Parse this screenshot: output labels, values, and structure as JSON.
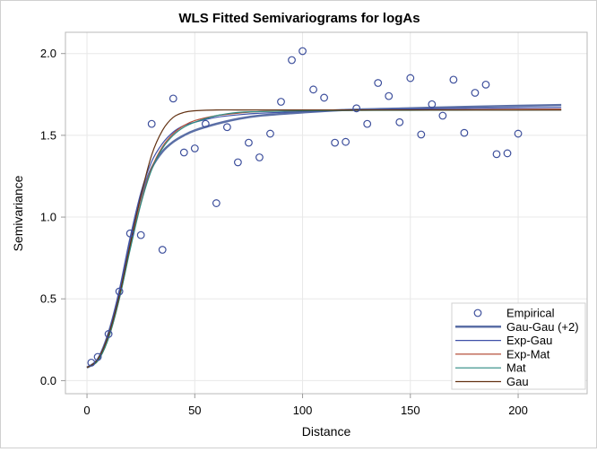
{
  "chart_data": {
    "type": "scatter",
    "title": "WLS Fitted Semivariograms for logAs",
    "xlabel": "Distance",
    "ylabel": "Semivariance",
    "xlim": [
      -10,
      232
    ],
    "ylim": [
      -0.08,
      2.13
    ],
    "xticks": [
      0,
      50,
      100,
      150,
      200
    ],
    "yticks": [
      0.0,
      0.5,
      1.0,
      1.5,
      2.0
    ],
    "xtick_labels": [
      "0",
      "50",
      "100",
      "150",
      "200"
    ],
    "ytick_labels": [
      "0.0",
      "0.5",
      "1.0",
      "1.5",
      "2.0"
    ],
    "grid": true,
    "legend_position": "bottom-right",
    "empirical": {
      "name": "Empirical",
      "color": "#3d4f9c",
      "x": [
        2,
        5,
        10,
        15,
        20,
        25,
        30,
        35,
        40,
        45,
        50,
        55,
        60,
        65,
        70,
        75,
        80,
        85,
        90,
        95,
        100,
        105,
        110,
        115,
        120,
        125,
        130,
        135,
        140,
        145,
        150,
        155,
        160,
        165,
        170,
        175,
        180,
        185,
        190,
        195,
        200
      ],
      "y": [
        0.11,
        0.145,
        0.285,
        0.545,
        0.9,
        0.89,
        1.57,
        0.8,
        1.725,
        1.395,
        1.42,
        1.57,
        1.085,
        1.55,
        1.335,
        1.455,
        1.365,
        1.51,
        1.705,
        1.96,
        2.015,
        1.78,
        1.73,
        1.455,
        1.46,
        1.665,
        1.57,
        1.82,
        1.74,
        1.58,
        1.85,
        1.505,
        1.69,
        1.62,
        1.84,
        1.515,
        1.76,
        1.81,
        1.385,
        1.39,
        1.51
      ]
    },
    "series": [
      {
        "name": "Gau-Gau (+2)",
        "color": "#5b6fa6",
        "width": 2.5,
        "x": [
          0,
          5,
          10,
          15,
          20,
          25,
          30,
          35,
          40,
          45,
          50,
          60,
          70,
          80,
          100,
          120,
          150,
          180,
          220
        ],
        "y": [
          0.08,
          0.13,
          0.29,
          0.54,
          0.86,
          1.13,
          1.3,
          1.4,
          1.46,
          1.5,
          1.53,
          1.57,
          1.6,
          1.62,
          1.64,
          1.655,
          1.665,
          1.675,
          1.685
        ]
      },
      {
        "name": "Exp-Gau",
        "color": "#3f51a8",
        "width": 1.2,
        "x": [
          0,
          5,
          10,
          15,
          20,
          25,
          30,
          35,
          40,
          45,
          50,
          60,
          70,
          80,
          100,
          120,
          150,
          180,
          220
        ],
        "y": [
          0.08,
          0.13,
          0.29,
          0.55,
          0.87,
          1.15,
          1.34,
          1.45,
          1.52,
          1.56,
          1.58,
          1.61,
          1.625,
          1.635,
          1.645,
          1.652,
          1.66,
          1.665,
          1.67
        ]
      },
      {
        "name": "Exp-Mat",
        "color": "#b5503c",
        "width": 1.2,
        "x": [
          0,
          5,
          10,
          15,
          20,
          25,
          30,
          35,
          40,
          45,
          50,
          60,
          70,
          80,
          100,
          120,
          150,
          180,
          220
        ],
        "y": [
          0.08,
          0.12,
          0.26,
          0.5,
          0.81,
          1.09,
          1.3,
          1.43,
          1.51,
          1.56,
          1.59,
          1.62,
          1.635,
          1.645,
          1.65,
          1.652,
          1.655,
          1.657,
          1.66
        ]
      },
      {
        "name": "Mat",
        "color": "#2b8a80",
        "width": 1.2,
        "x": [
          0,
          5,
          10,
          15,
          20,
          25,
          30,
          35,
          40,
          45,
          50,
          60,
          70,
          80,
          100,
          120,
          150,
          180,
          220
        ],
        "y": [
          0.08,
          0.12,
          0.26,
          0.5,
          0.8,
          1.08,
          1.29,
          1.42,
          1.5,
          1.55,
          1.58,
          1.62,
          1.64,
          1.645,
          1.65,
          1.652,
          1.653,
          1.654,
          1.655
        ]
      },
      {
        "name": "Gau",
        "color": "#633213",
        "width": 1.2,
        "x": [
          0,
          5,
          10,
          15,
          20,
          25,
          30,
          35,
          40,
          45,
          50,
          60,
          70,
          80,
          100,
          120,
          150,
          180,
          220
        ],
        "y": [
          0.08,
          0.13,
          0.28,
          0.52,
          0.83,
          1.13,
          1.38,
          1.53,
          1.61,
          1.64,
          1.65,
          1.655,
          1.655,
          1.655,
          1.655,
          1.655,
          1.655,
          1.655,
          1.655
        ]
      }
    ]
  }
}
